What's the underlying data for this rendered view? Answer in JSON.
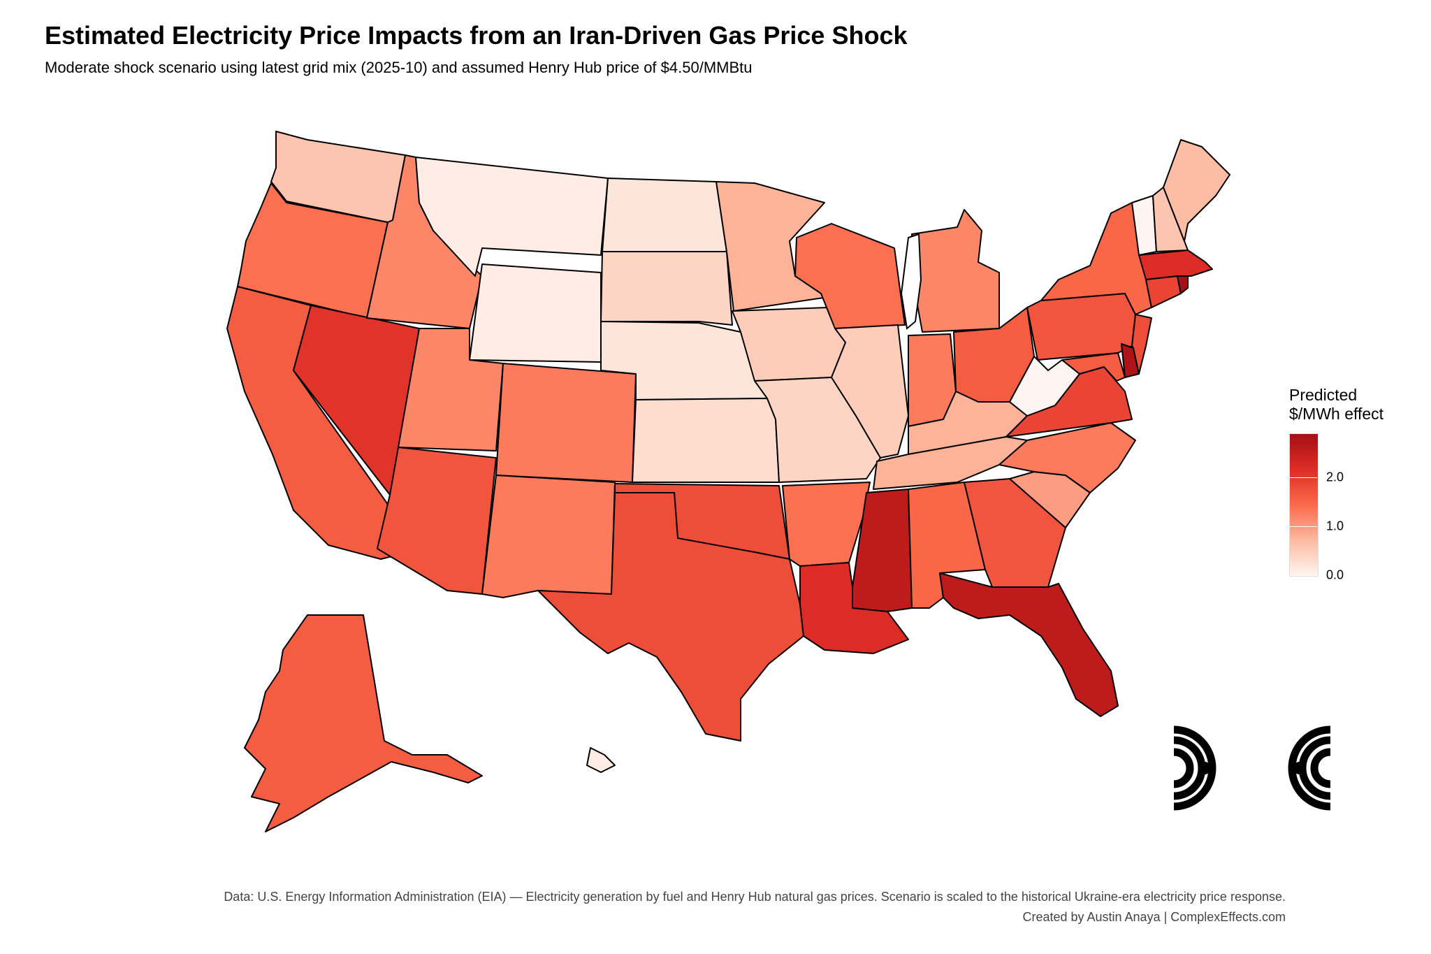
{
  "title": "Estimated Electricity Price Impacts from an Iran-Driven Gas Price Shock",
  "subtitle": "Moderate shock scenario using latest grid mix (2025-10) and assumed Henry Hub price of $4.50/MMBtu",
  "legend": {
    "title_line1": "Predicted",
    "title_line2": "$/MWh effect",
    "ticks": [
      {
        "label": "2.0",
        "value": 2.0
      },
      {
        "label": "1.0",
        "value": 1.0
      },
      {
        "label": "0.0",
        "value": 0.0
      }
    ],
    "max_value": 2.9,
    "colors": [
      "#fff5f0",
      "#fcbba1",
      "#fb6a4a",
      "#de2d26",
      "#a50f15"
    ]
  },
  "caption": {
    "line1": "Data: U.S. Energy Information Administration (EIA) — Electricity generation by fuel and Henry Hub natural gas prices. Scenario is scaled to the historical Ukraine-era electricity price response.",
    "line2": "Created by Austin Anaya | ComplexEffects.com"
  },
  "states": {
    "WA": 0.6,
    "OR": 1.4,
    "CA": 1.6,
    "NV": 2.1,
    "ID": 1.2,
    "MT": 0.1,
    "WY": 0.1,
    "UT": 1.2,
    "CO": 1.3,
    "AZ": 1.7,
    "NM": 1.3,
    "ND": 0.2,
    "SD": 0.4,
    "NE": 0.2,
    "KS": 0.3,
    "OK": 1.8,
    "TX": 1.8,
    "MN": 0.8,
    "IA": 0.5,
    "MO": 0.4,
    "AR": 1.4,
    "LA": 2.2,
    "WI": 1.4,
    "IL": 0.5,
    "MI": 1.2,
    "IN": 1.3,
    "OH": 1.6,
    "KY": 0.8,
    "TN": 0.8,
    "MS": 2.6,
    "AL": 1.5,
    "GA": 1.7,
    "FL": 2.6,
    "SC": 1.0,
    "NC": 1.3,
    "VA": 1.9,
    "WV": 0.0,
    "PA": 1.7,
    "NY": 1.5,
    "MD": 1.6,
    "DE": 2.8,
    "NJ": 1.8,
    "CT": 1.9,
    "RI": 2.9,
    "MA": 2.2,
    "VT": 0.0,
    "NH": 0.6,
    "ME": 0.7,
    "AK": 1.6,
    "HI": 0.1
  }
}
